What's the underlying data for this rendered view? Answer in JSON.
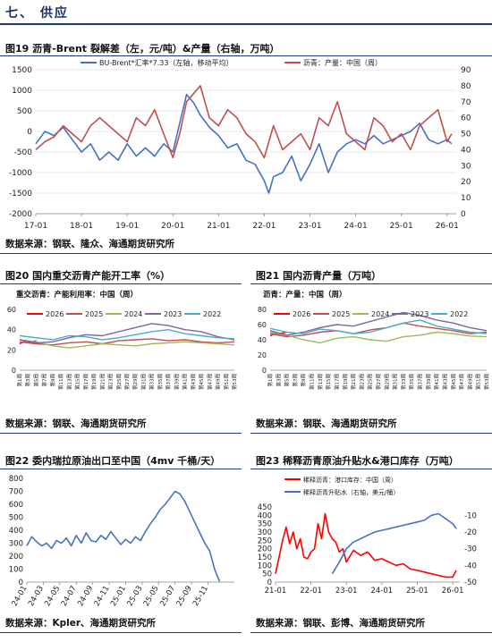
{
  "section": {
    "title": "七、 供应"
  },
  "fig19": {
    "title": "图19  沥青-Brent 裂解差（左，元/吨）&产量（右轴，万吨）",
    "source": "数据来源：钢联、隆众、海通期货研究所"
  },
  "fig20": {
    "title": "图20  国内重交沥青产能开工率（%）",
    "source": "数据来源：钢联、海通期货研究所"
  },
  "fig21": {
    "title": "图21  国内沥青产量（万吨）",
    "source": "数据来源：钢联、海通期货研究所"
  },
  "fig22": {
    "title": "图22  委内瑞拉原油出口至中国（4mv 千桶/天）",
    "source": "数据来源：Kpler、海通期货研究所"
  },
  "fig23": {
    "title": "图23  稀释沥青原油升贴水&港口库存（万吨）",
    "source": "数据来源：钢联、彭博、海通期货研究所"
  },
  "chart_data": [
    {
      "id": "c19",
      "type": "line",
      "title": "",
      "ylim": [
        -2000,
        1500
      ],
      "ylim_right": [
        0,
        90
      ],
      "yticks": [
        -2000,
        -1500,
        -1000,
        -500,
        0,
        500,
        1000,
        1500
      ],
      "yticks_right": [
        0,
        10,
        20,
        30,
        40,
        50,
        60,
        70,
        80,
        90
      ],
      "xlim": [
        2017.0,
        2026.2
      ],
      "xticks": [
        2017,
        2018,
        2019,
        2020,
        2021,
        2022,
        2023,
        2024,
        2025,
        2026
      ],
      "xtick_labels": [
        "17-01",
        "18-01",
        "19-01",
        "20-01",
        "21-01",
        "22-01",
        "23-01",
        "24-01",
        "25-01",
        "26-01"
      ],
      "grid": true,
      "legend": "top",
      "series": [
        {
          "name": "BU-Brent*汇率*7.33（左轴，移动平均）",
          "color": "#4472c4",
          "axis": "left",
          "x": [
            2017.0,
            2017.2,
            2017.4,
            2017.6,
            2017.8,
            2018.0,
            2018.2,
            2018.4,
            2018.6,
            2018.8,
            2019.0,
            2019.2,
            2019.4,
            2019.6,
            2019.8,
            2020.0,
            2020.15,
            2020.3,
            2020.45,
            2020.6,
            2020.8,
            2021.0,
            2021.2,
            2021.4,
            2021.6,
            2021.8,
            2022.0,
            2022.1,
            2022.2,
            2022.4,
            2022.6,
            2022.8,
            2023.0,
            2023.2,
            2023.4,
            2023.6,
            2023.8,
            2024.0,
            2024.2,
            2024.4,
            2024.6,
            2024.8,
            2025.0,
            2025.2,
            2025.4,
            2025.6,
            2025.8,
            2026.0,
            2026.1
          ],
          "y": [
            -300,
            0,
            -100,
            100,
            -200,
            -500,
            -300,
            -700,
            -500,
            -700,
            -300,
            -600,
            -400,
            -600,
            -300,
            -500,
            200,
            900,
            700,
            400,
            100,
            -100,
            -400,
            -300,
            -700,
            -800,
            -1200,
            -1500,
            -1100,
            -1000,
            -600,
            -1200,
            -800,
            -300,
            -1000,
            -500,
            -300,
            -200,
            -300,
            -100,
            -300,
            -200,
            -100,
            0,
            200,
            -200,
            -300,
            -200,
            -300
          ]
        },
        {
          "name": "沥青：产量：中国（周）",
          "color": "#c0504d",
          "axis": "right",
          "x": [
            2017.0,
            2017.2,
            2017.4,
            2017.6,
            2017.8,
            2018.0,
            2018.2,
            2018.4,
            2018.6,
            2018.8,
            2019.0,
            2019.2,
            2019.4,
            2019.6,
            2019.8,
            2020.0,
            2020.15,
            2020.3,
            2020.45,
            2020.6,
            2020.8,
            2021.0,
            2021.2,
            2021.4,
            2021.6,
            2021.8,
            2022.0,
            2022.2,
            2022.4,
            2022.6,
            2022.8,
            2023.0,
            2023.2,
            2023.4,
            2023.6,
            2023.8,
            2024.0,
            2024.2,
            2024.4,
            2024.6,
            2024.8,
            2025.0,
            2025.2,
            2025.4,
            2025.6,
            2025.8,
            2026.0,
            2026.1
          ],
          "y": [
            40,
            45,
            48,
            55,
            50,
            45,
            55,
            60,
            55,
            50,
            45,
            60,
            55,
            65,
            50,
            35,
            50,
            70,
            75,
            80,
            60,
            55,
            65,
            60,
            50,
            45,
            35,
            55,
            40,
            45,
            50,
            40,
            60,
            55,
            70,
            50,
            45,
            40,
            60,
            55,
            45,
            50,
            40,
            55,
            60,
            65,
            45,
            50
          ]
        }
      ]
    },
    {
      "id": "c20",
      "type": "line",
      "title": "重交沥青：产能利用率：中国（周）",
      "ylim": [
        0,
        60
      ],
      "yticks": [
        0,
        20,
        40,
        60
      ],
      "xlim": [
        1,
        53
      ],
      "xtick_labels": [
        "第1周",
        "第3周",
        "第5周",
        "第7周",
        "第9周",
        "第11周",
        "第13周",
        "第15周",
        "第17周",
        "第19周",
        "第21周",
        "第23周",
        "第25周",
        "第27周",
        "第29周",
        "第31周",
        "第33周",
        "第35周",
        "第37周",
        "第39周",
        "第41周",
        "第43周",
        "第45周",
        "第47周",
        "第49周",
        "第51周",
        "第53周"
      ],
      "legend": "top",
      "series": [
        {
          "name": "2026",
          "color": "#ff0000",
          "x": [
            1,
            2,
            3,
            4,
            5
          ],
          "y": [
            26,
            28,
            27,
            28,
            29
          ]
        },
        {
          "name": "2025",
          "color": "#c0504d",
          "x": [
            1,
            5,
            9,
            13,
            17,
            21,
            25,
            29,
            33,
            37,
            41,
            45,
            49,
            53
          ],
          "y": [
            28,
            26,
            25,
            27,
            28,
            26,
            29,
            30,
            31,
            29,
            30,
            28,
            27,
            28
          ]
        },
        {
          "name": "2024",
          "color": "#9bbb59",
          "x": [
            1,
            5,
            9,
            13,
            17,
            21,
            25,
            29,
            33,
            37,
            41,
            45,
            49,
            53
          ],
          "y": [
            30,
            28,
            24,
            22,
            24,
            26,
            25,
            24,
            26,
            27,
            28,
            27,
            26,
            25
          ]
        },
        {
          "name": "2023",
          "color": "#8064a2",
          "x": [
            1,
            5,
            9,
            13,
            17,
            21,
            25,
            29,
            33,
            37,
            41,
            45,
            49,
            53
          ],
          "y": [
            30,
            27,
            28,
            32,
            35,
            34,
            38,
            42,
            46,
            44,
            40,
            38,
            33,
            30
          ]
        },
        {
          "name": "2022",
          "color": "#4bacc6",
          "x": [
            1,
            5,
            9,
            13,
            17,
            21,
            25,
            29,
            33,
            37,
            41,
            45,
            49,
            53
          ],
          "y": [
            34,
            32,
            30,
            34,
            33,
            30,
            32,
            35,
            38,
            40,
            36,
            34,
            32,
            31
          ]
        }
      ]
    },
    {
      "id": "c21",
      "type": "line",
      "title": "沥青：产量：中国（周）",
      "ylim": [
        0,
        80
      ],
      "yticks": [
        0,
        20,
        40,
        60,
        80
      ],
      "xlim": [
        1,
        53
      ],
      "xtick_labels": [
        "第1周",
        "第3周",
        "第5周",
        "第7周",
        "第9周",
        "第11周",
        "第13周",
        "第15周",
        "第17周",
        "第19周",
        "第21周",
        "第23周",
        "第25周",
        "第27周",
        "第29周",
        "第31周",
        "第33周",
        "第35周",
        "第37周",
        "第39周",
        "第41周",
        "第43周",
        "第45周",
        "第47周",
        "第49周",
        "第51周",
        "第53周"
      ],
      "legend": "top",
      "series": [
        {
          "name": "2026",
          "color": "#ff0000",
          "x": [
            1,
            2,
            3,
            4,
            5
          ],
          "y": [
            45,
            48,
            47,
            49,
            50
          ]
        },
        {
          "name": "2025",
          "color": "#c0504d",
          "x": [
            1,
            5,
            9,
            13,
            17,
            21,
            25,
            29,
            33,
            37,
            41,
            45,
            49,
            53
          ],
          "y": [
            48,
            44,
            46,
            50,
            52,
            48,
            53,
            56,
            62,
            58,
            55,
            52,
            48,
            50
          ]
        },
        {
          "name": "2024",
          "color": "#9bbb59",
          "x": [
            1,
            5,
            9,
            13,
            17,
            21,
            25,
            29,
            33,
            37,
            41,
            45,
            49,
            53
          ],
          "y": [
            50,
            46,
            40,
            36,
            42,
            44,
            40,
            38,
            44,
            46,
            50,
            48,
            45,
            44
          ]
        },
        {
          "name": "2023",
          "color": "#8064a2",
          "x": [
            1,
            5,
            9,
            13,
            17,
            21,
            25,
            29,
            33,
            37,
            41,
            45,
            49,
            53
          ],
          "y": [
            52,
            46,
            50,
            56,
            60,
            58,
            64,
            70,
            76,
            72,
            66,
            62,
            56,
            52
          ]
        },
        {
          "name": "2022",
          "color": "#4bacc6",
          "x": [
            1,
            5,
            9,
            13,
            17,
            21,
            25,
            29,
            33,
            37,
            41,
            45,
            49,
            53
          ],
          "y": [
            55,
            50,
            48,
            54,
            52,
            48,
            50,
            56,
            62,
            66,
            58,
            54,
            50,
            48
          ]
        }
      ]
    },
    {
      "id": "c22",
      "type": "line",
      "title": "",
      "ylim": [
        0,
        800
      ],
      "yticks": [
        0,
        100,
        200,
        300,
        400,
        500,
        600,
        700,
        800
      ],
      "xlim": [
        2024.0,
        2026.1
      ],
      "xticks": [
        2024.0,
        2024.167,
        2024.333,
        2024.5,
        2024.667,
        2024.833,
        2025.0,
        2025.167,
        2025.333,
        2025.5,
        2025.667,
        2025.833
      ],
      "xtick_labels": [
        "24-01",
        "24-03",
        "24-05",
        "24-07",
        "24-09",
        "24-11",
        "25-01",
        "25-03",
        "25-05",
        "25-07",
        "25-09",
        "25-11"
      ],
      "legend": "none",
      "series": [
        {
          "name": "",
          "color": "#4472c4",
          "x": [
            2024.0,
            2024.05,
            2024.1,
            2024.15,
            2024.2,
            2024.25,
            2024.3,
            2024.35,
            2024.4,
            2024.45,
            2024.5,
            2024.55,
            2024.6,
            2024.65,
            2024.7,
            2024.75,
            2024.8,
            2024.85,
            2024.9,
            2024.95,
            2025.0,
            2025.05,
            2025.1,
            2025.15,
            2025.2,
            2025.25,
            2025.3,
            2025.35,
            2025.4,
            2025.45,
            2025.5,
            2025.55,
            2025.6,
            2025.65,
            2025.7,
            2025.75,
            2025.8,
            2025.85,
            2025.9,
            2025.95
          ],
          "y": [
            280,
            350,
            310,
            280,
            300,
            260,
            320,
            300,
            340,
            280,
            360,
            300,
            380,
            320,
            310,
            360,
            330,
            390,
            340,
            290,
            330,
            300,
            350,
            320,
            390,
            450,
            500,
            560,
            600,
            650,
            700,
            680,
            620,
            540,
            460,
            380,
            300,
            240,
            100,
            5
          ]
        }
      ]
    },
    {
      "id": "c23",
      "type": "line",
      "title": "",
      "ylim": [
        0,
        450
      ],
      "ylim_right": [
        -50,
        -5
      ],
      "yticks": [
        0,
        50,
        100,
        150,
        200,
        250,
        300,
        350,
        400,
        450
      ],
      "yticks_right": [
        -50,
        -40,
        -30,
        -20,
        -10
      ],
      "xlim": [
        2021.0,
        2026.2
      ],
      "xticks": [
        2021,
        2022,
        2023,
        2024,
        2025,
        2026
      ],
      "xtick_labels": [
        "21-01",
        "22-01",
        "23-01",
        "24-01",
        "25-01",
        "26-01"
      ],
      "legend": "top",
      "series": [
        {
          "name": "稀释沥青：港口库存：中国（周）",
          "color": "#ff0000",
          "axis": "left",
          "x": [
            2021.0,
            2021.1,
            2021.2,
            2021.3,
            2021.4,
            2021.5,
            2021.6,
            2021.7,
            2021.8,
            2021.9,
            2022.0,
            2022.1,
            2022.2,
            2022.3,
            2022.4,
            2022.5,
            2022.6,
            2022.7,
            2022.8,
            2022.9,
            2023.0,
            2023.2,
            2023.4,
            2023.6,
            2023.8,
            2024.0,
            2024.2,
            2024.4,
            2024.6,
            2024.8,
            2025.0,
            2025.2,
            2025.4,
            2025.6,
            2025.8,
            2026.0,
            2026.1
          ],
          "y": [
            50,
            150,
            250,
            330,
            230,
            300,
            200,
            260,
            150,
            140,
            180,
            200,
            350,
            260,
            410,
            300,
            260,
            240,
            180,
            200,
            120,
            190,
            160,
            180,
            130,
            140,
            120,
            100,
            110,
            80,
            70,
            60,
            50,
            40,
            30,
            30,
            70
          ]
        },
        {
          "name": "稀释沥青升贴水（右轴，美元/桶）",
          "color": "#4472c4",
          "axis": "right",
          "x": [
            2022.6,
            2022.8,
            2023.0,
            2023.2,
            2023.4,
            2023.6,
            2023.8,
            2024.0,
            2024.2,
            2024.4,
            2024.6,
            2024.8,
            2025.0,
            2025.2,
            2025.4,
            2025.6,
            2025.8,
            2026.0,
            2026.1
          ],
          "y": [
            -45,
            -38,
            -30,
            -26,
            -24,
            -22,
            -20,
            -19,
            -18,
            -17,
            -16,
            -15,
            -14,
            -13,
            -10,
            -9,
            -12,
            -15,
            -18
          ]
        }
      ]
    }
  ]
}
